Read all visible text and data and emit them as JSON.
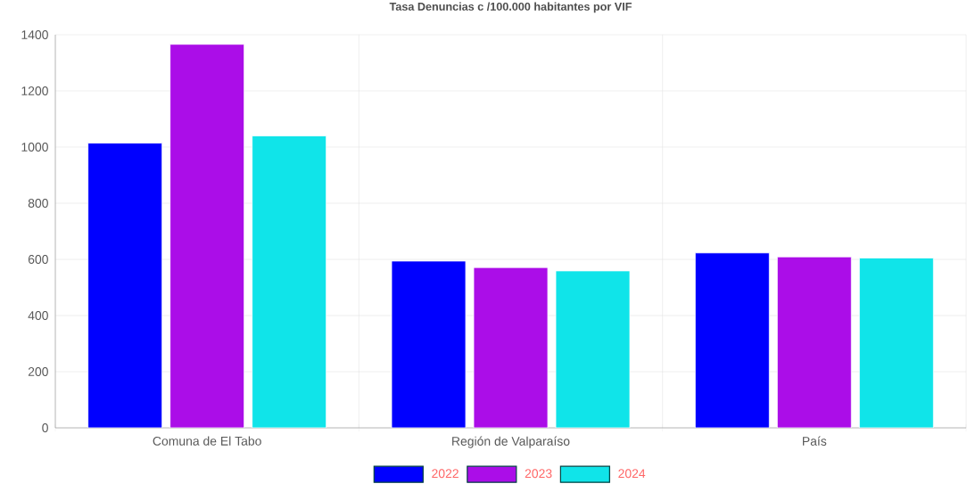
{
  "chart_data": {
    "type": "bar",
    "title": "Tasa Denuncias c /100.000 habitantes por VIF",
    "categories": [
      "Comuna de El Tabo",
      "Región de Valparaíso",
      "País"
    ],
    "series": [
      {
        "name": "2022",
        "color": "#0000ff",
        "values": [
          1014,
          594,
          623
        ]
      },
      {
        "name": "2023",
        "color": "#ab0de8",
        "values": [
          1366,
          571,
          609
        ]
      },
      {
        "name": "2024",
        "color": "#10e4e9",
        "values": [
          1040,
          559,
          605
        ]
      }
    ],
    "ylim": [
      0,
      1400
    ],
    "yticks": [
      0,
      200,
      400,
      600,
      800,
      1000,
      1200,
      1400
    ],
    "grid": true,
    "legend": "bottom"
  }
}
